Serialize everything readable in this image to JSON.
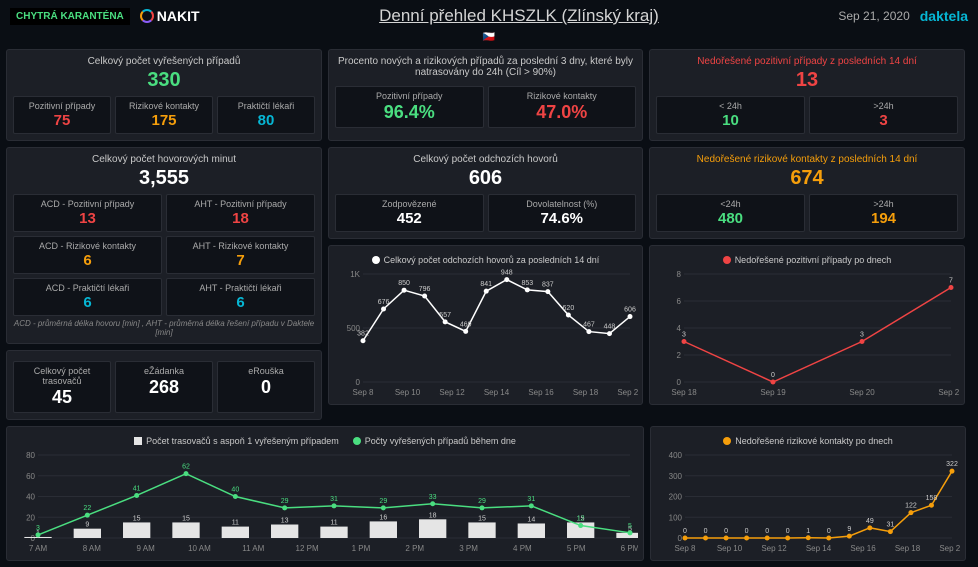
{
  "header": {
    "chytra": "CHYTRÁ\nKARANTÉNA",
    "nakit": "NAKIT",
    "title": "Denní přehled KHSZLK (Zlínský kraj)",
    "date": "Sep 21, 2020",
    "daktela": "daktela"
  },
  "p1": {
    "title": "Celkový počet vyřešených případů",
    "total": "330",
    "c1t": "Pozitivní případy",
    "c1v": "75",
    "c2t": "Rizikové kontakty",
    "c2v": "175",
    "c3t": "Praktičtí lékaři",
    "c3v": "80"
  },
  "p2": {
    "title": "Procento nových a rizikových případů za poslední 3 dny, které byly natrasovány do 24h (Cíl > 90%)",
    "c1t": "Pozitivní případy",
    "c1v": "96.4%",
    "c2t": "Rizikové kontakty",
    "c2v": "47.0%"
  },
  "p3": {
    "title": "Nedořešené pozitivní případy z posledních 14 dní",
    "total": "13",
    "c1t": "< 24h",
    "c1v": "10",
    "c2t": ">24h",
    "c2v": "3"
  },
  "p4": {
    "title": "Celkový počet hovorových minut",
    "total": "3,555",
    "r1c1t": "ACD - Pozitivní případy",
    "r1c1v": "13",
    "r1c2t": "AHT - Pozitivní případy",
    "r1c2v": "18",
    "r2c1t": "ACD - Rizikové kontakty",
    "r2c1v": "6",
    "r2c2t": "AHT - Rizikové kontakty",
    "r2c2v": "7",
    "r3c1t": "ACD - Praktičtí lékaři",
    "r3c1v": "6",
    "r3c2t": "AHT - Praktičtí lékaři",
    "r3c2v": "6",
    "foot": "ACD - průměrná délka hovoru [min] , AHT - průměrná délka řešení případu v Daktele [min]"
  },
  "p5": {
    "title": "Celkový počet odchozích hovorů",
    "total": "606",
    "c1t": "Zodpovězené",
    "c1v": "452",
    "c2t": "Dovolatelnost (%)",
    "c2v": "74.6%"
  },
  "p6": {
    "title": "Nedořešené rizikové kontakty z posledních 14 dní",
    "total": "674",
    "c1t": "<24h",
    "c1v": "480",
    "c2t": ">24h",
    "c2v": "194"
  },
  "p7": {
    "c1t": "Celkový počet trasovačů",
    "c1v": "45",
    "c2t": "eŽádanka",
    "c2v": "268",
    "c3t": "eRouška",
    "c3v": "0"
  },
  "chart1": {
    "title": "Celkový počet odchozích hovorů za posledních 14 dní",
    "color": "#ffffff",
    "yticks": [
      "1K",
      "500",
      "0"
    ],
    "xlabels": [
      "Sep 8",
      "Sep 10",
      "Sep 12",
      "Sep 14",
      "Sep 16",
      "Sep 18",
      "Sep 20"
    ],
    "points": [
      382,
      676,
      850,
      796,
      557,
      469,
      841,
      948,
      853,
      837,
      620,
      467,
      448,
      606
    ]
  },
  "chart2": {
    "title": "Nedořešené pozitivní případy po dnech",
    "color": "#ef4444",
    "yticks": [
      "8",
      "6",
      "4",
      "2",
      "0"
    ],
    "xlabels": [
      "Sep 18",
      "Sep 19",
      "Sep 20",
      "Sep 21"
    ],
    "points": [
      3,
      0,
      3,
      7
    ]
  },
  "chart3": {
    "title1": "Počet trasovačů s aspoň 1 vyřešeným případem",
    "title2": "Počty vyřešených případů během dne",
    "bar_color": "#e5e5e5",
    "line_color": "#4ade80",
    "yticks": [
      "80",
      "60",
      "40",
      "20",
      "0"
    ],
    "xlabels": [
      "7 AM",
      "8 AM",
      "9 AM",
      "10 AM",
      "11 AM",
      "12 PM",
      "1 PM",
      "2 PM",
      "3 PM",
      "4 PM",
      "5 PM",
      "6 PM"
    ],
    "bars": [
      1,
      9,
      15,
      15,
      11,
      13,
      11,
      16,
      18,
      15,
      14,
      15,
      5
    ],
    "line": [
      3,
      22,
      41,
      62,
      40,
      29,
      31,
      29,
      33,
      29,
      31,
      12,
      5
    ]
  },
  "chart4": {
    "title": "Nedořešené rizikové kontakty po dnech",
    "color": "#f59e0b",
    "yticks": [
      "400",
      "300",
      "200",
      "100",
      "0"
    ],
    "xlabels": [
      "Sep 8",
      "Sep 10",
      "Sep 12",
      "Sep 14",
      "Sep 16",
      "Sep 18",
      "Sep 20"
    ],
    "points": [
      0,
      0,
      0,
      0,
      0,
      0,
      1,
      0,
      9,
      49,
      31,
      122,
      158,
      322
    ]
  }
}
